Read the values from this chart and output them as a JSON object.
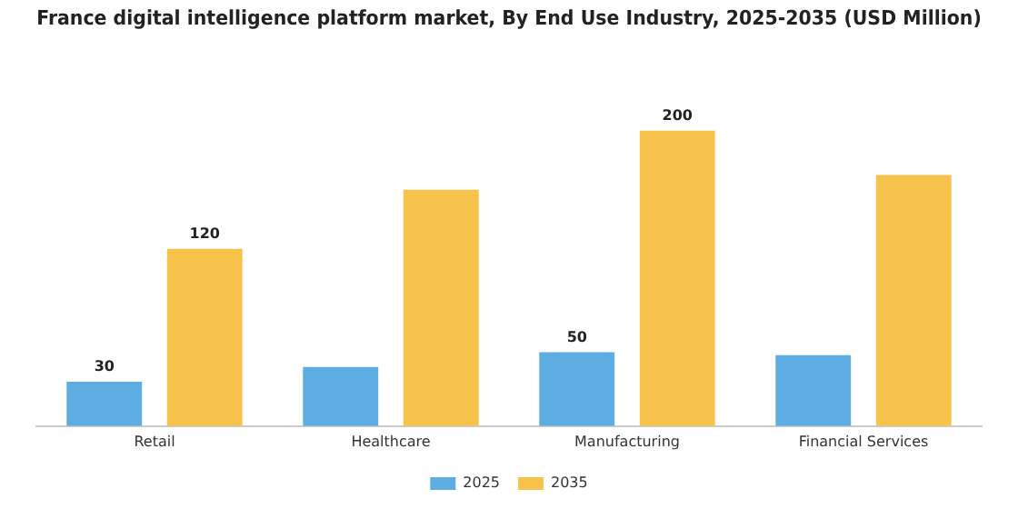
{
  "chart_data": {
    "type": "bar",
    "title": "France digital intelligence platform market, By End Use Industry, 2025-2035 (USD Million)",
    "categories": [
      "Retail",
      "Healthcare",
      "Manufacturing",
      "Financial Services"
    ],
    "series": [
      {
        "name": "2025",
        "color": "#5dade2",
        "values": [
          30,
          40,
          50,
          48
        ],
        "value_labels": [
          "30",
          null,
          "50",
          null
        ]
      },
      {
        "name": "2035",
        "color": "#f7c34a",
        "values": [
          120,
          160,
          200,
          170
        ],
        "value_labels": [
          "120",
          null,
          "200",
          null
        ]
      }
    ],
    "legend": "bottom",
    "grid": false,
    "tick_labels": "x"
  }
}
